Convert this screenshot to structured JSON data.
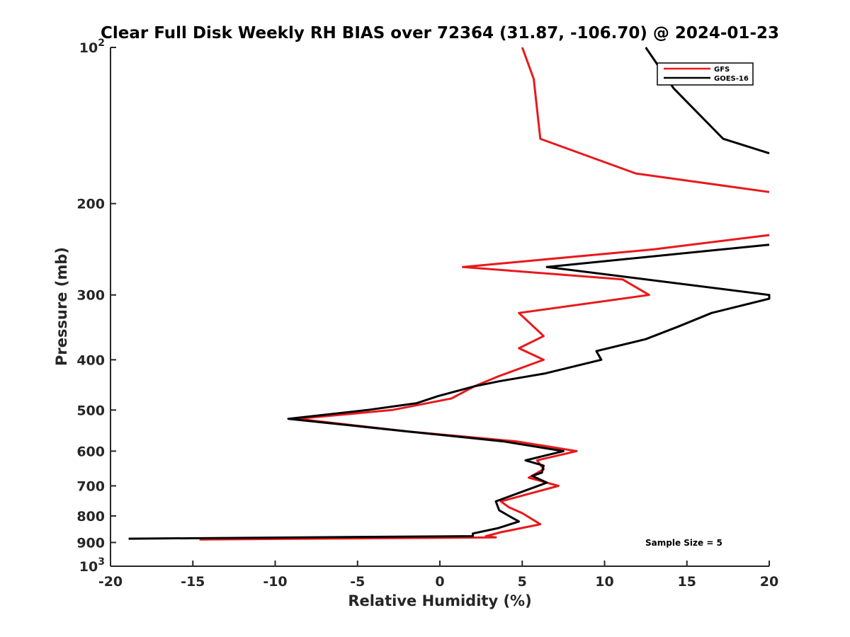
{
  "chart_data": {
    "type": "line",
    "title": "Clear Full Disk Weekly RH BIAS over 72364 (31.87, -106.70) @ 2024-01-23",
    "xlabel": "Relative Humidity (%)",
    "ylabel": "Pressure (mb)",
    "xlim": [
      -20,
      20
    ],
    "ylim": [
      100,
      1000
    ],
    "y_scale": "log",
    "y_reversed": true,
    "grid": false,
    "x_ticks": [
      {
        "value": -20,
        "label": "-20"
      },
      {
        "value": -15,
        "label": "-15"
      },
      {
        "value": -10,
        "label": "-10"
      },
      {
        "value": -5,
        "label": "-5"
      },
      {
        "value": 0,
        "label": "0"
      },
      {
        "value": 5,
        "label": "5"
      },
      {
        "value": 10,
        "label": "10"
      },
      {
        "value": 15,
        "label": "15"
      },
      {
        "value": 20,
        "label": "20"
      }
    ],
    "y_ticks": [
      {
        "value": 100,
        "base": "10",
        "exp": "2"
      },
      {
        "value": 200,
        "base": "200",
        "exp": ""
      },
      {
        "value": 300,
        "base": "300",
        "exp": ""
      },
      {
        "value": 400,
        "base": "400",
        "exp": ""
      },
      {
        "value": 500,
        "base": "500",
        "exp": ""
      },
      {
        "value": 600,
        "base": "600",
        "exp": ""
      },
      {
        "value": 700,
        "base": "700",
        "exp": ""
      },
      {
        "value": 800,
        "base": "800",
        "exp": ""
      },
      {
        "value": 900,
        "base": "900",
        "exp": ""
      },
      {
        "value": 1000,
        "base": "10",
        "exp": "3"
      }
    ],
    "legend_position": "top-right",
    "annotation": "Sample Size = 5",
    "series": [
      {
        "name": "GFS",
        "color": "#e8191c",
        "points": [
          [
            5.0,
            100
          ],
          [
            5.7,
            115
          ],
          [
            6.1,
            150
          ],
          [
            11.9,
            175
          ],
          [
            20.0,
            190
          ],
          null,
          [
            20.0,
            230
          ],
          [
            13.0,
            245
          ],
          [
            1.4,
            265
          ],
          [
            11.1,
            280
          ],
          [
            12.7,
            300
          ],
          [
            4.8,
            325
          ],
          [
            6.3,
            360
          ],
          [
            4.8,
            380
          ],
          [
            6.3,
            400
          ],
          [
            3.6,
            430
          ],
          [
            2.1,
            450
          ],
          [
            0.7,
            475
          ],
          [
            -2.9,
            500
          ],
          [
            -8.7,
            520
          ],
          [
            -1.9,
            550
          ],
          [
            4.7,
            575
          ],
          [
            8.3,
            600
          ],
          [
            5.9,
            625
          ],
          [
            6.3,
            650
          ],
          [
            5.4,
            675
          ],
          [
            7.2,
            700
          ],
          [
            3.7,
            750
          ],
          [
            4.2,
            770
          ],
          [
            5.0,
            790
          ],
          [
            6.1,
            830
          ],
          [
            3.7,
            860
          ],
          [
            2.8,
            875
          ],
          [
            3.4,
            880
          ],
          [
            -14.6,
            888
          ]
        ]
      },
      {
        "name": "GOES-16",
        "color": "#000000",
        "points": [
          [
            12.5,
            100
          ],
          [
            14.2,
            120
          ],
          [
            17.2,
            150
          ],
          [
            20.0,
            160
          ],
          null,
          [
            20.0,
            240
          ],
          [
            6.5,
            265
          ],
          [
            20.0,
            300
          ],
          [
            20.0,
            305
          ],
          [
            16.5,
            325
          ],
          [
            14.5,
            345
          ],
          [
            12.5,
            365
          ],
          [
            9.5,
            385
          ],
          [
            9.8,
            400
          ],
          [
            6.4,
            425
          ],
          [
            3.6,
            440
          ],
          [
            2.1,
            450
          ],
          [
            -0.1,
            470
          ],
          [
            -1.4,
            485
          ],
          [
            -4.4,
            500
          ],
          [
            -9.2,
            520
          ],
          [
            -1.9,
            550
          ],
          [
            3.9,
            575
          ],
          [
            7.5,
            600
          ],
          [
            5.2,
            625
          ],
          [
            6.3,
            640
          ],
          [
            6.2,
            660
          ],
          [
            5.6,
            670
          ],
          [
            6.5,
            690
          ],
          [
            3.4,
            750
          ],
          [
            3.6,
            780
          ],
          [
            4.2,
            800
          ],
          [
            4.8,
            820
          ],
          [
            3.5,
            845
          ],
          [
            2.0,
            865
          ],
          [
            2.0,
            875
          ],
          [
            -18.9,
            885
          ]
        ]
      }
    ]
  }
}
